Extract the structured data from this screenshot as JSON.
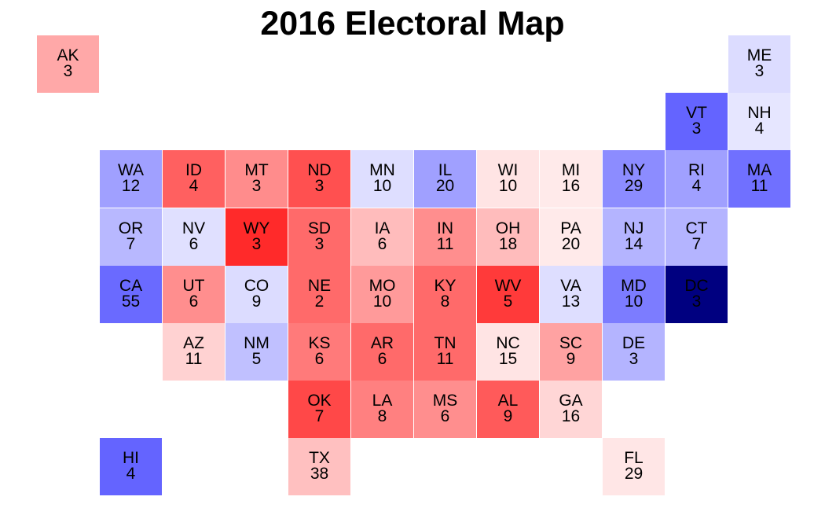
{
  "title": "2016 Electoral Map",
  "states": [
    {
      "abbr": "AK",
      "votes": "3",
      "col": 0,
      "row": 0,
      "color": "#ffa8a8"
    },
    {
      "abbr": "ME",
      "votes": "3",
      "col": 11,
      "row": 0,
      "color": "#dcdcff"
    },
    {
      "abbr": "VT",
      "votes": "3",
      "col": 10,
      "row": 1,
      "color": "#6464ff"
    },
    {
      "abbr": "NH",
      "votes": "4",
      "col": 11,
      "row": 1,
      "color": "#e6e6ff"
    },
    {
      "abbr": "WA",
      "votes": "12",
      "col": 1,
      "row": 2,
      "color": "#a0a0ff"
    },
    {
      "abbr": "ID",
      "votes": "4",
      "col": 2,
      "row": 2,
      "color": "#ff6060"
    },
    {
      "abbr": "MT",
      "votes": "3",
      "col": 3,
      "row": 2,
      "color": "#ff8c8c"
    },
    {
      "abbr": "ND",
      "votes": "3",
      "col": 4,
      "row": 2,
      "color": "#ff5050"
    },
    {
      "abbr": "MN",
      "votes": "10",
      "col": 5,
      "row": 2,
      "color": "#dedeff"
    },
    {
      "abbr": "IL",
      "votes": "20",
      "col": 6,
      "row": 2,
      "color": "#a0a0ff"
    },
    {
      "abbr": "WI",
      "votes": "10",
      "col": 7,
      "row": 2,
      "color": "#ffe4e4"
    },
    {
      "abbr": "MI",
      "votes": "16",
      "col": 8,
      "row": 2,
      "color": "#ffeaea"
    },
    {
      "abbr": "NY",
      "votes": "29",
      "col": 9,
      "row": 2,
      "color": "#8c8cff"
    },
    {
      "abbr": "RI",
      "votes": "4",
      "col": 10,
      "row": 2,
      "color": "#a0a0ff"
    },
    {
      "abbr": "MA",
      "votes": "11",
      "col": 11,
      "row": 2,
      "color": "#7070ff"
    },
    {
      "abbr": "OR",
      "votes": "7",
      "col": 1,
      "row": 3,
      "color": "#b8b8ff"
    },
    {
      "abbr": "NV",
      "votes": "6",
      "col": 2,
      "row": 3,
      "color": "#e0e0ff"
    },
    {
      "abbr": "WY",
      "votes": "3",
      "col": 3,
      "row": 3,
      "color": "#ff2a2a"
    },
    {
      "abbr": "SD",
      "votes": "3",
      "col": 4,
      "row": 3,
      "color": "#ff6a6a"
    },
    {
      "abbr": "IA",
      "votes": "6",
      "col": 5,
      "row": 3,
      "color": "#ffbcbc"
    },
    {
      "abbr": "IN",
      "votes": "11",
      "col": 6,
      "row": 3,
      "color": "#ff8e8e"
    },
    {
      "abbr": "OH",
      "votes": "18",
      "col": 7,
      "row": 3,
      "color": "#ffbcbc"
    },
    {
      "abbr": "PA",
      "votes": "20",
      "col": 8,
      "row": 3,
      "color": "#ffeaea"
    },
    {
      "abbr": "NJ",
      "votes": "14",
      "col": 9,
      "row": 3,
      "color": "#b4b4ff"
    },
    {
      "abbr": "CT",
      "votes": "7",
      "col": 10,
      "row": 3,
      "color": "#b4b4ff"
    },
    {
      "abbr": "CA",
      "votes": "55",
      "col": 1,
      "row": 4,
      "color": "#6a6aff"
    },
    {
      "abbr": "UT",
      "votes": "6",
      "col": 2,
      "row": 4,
      "color": "#ff8e8e"
    },
    {
      "abbr": "CO",
      "votes": "9",
      "col": 3,
      "row": 4,
      "color": "#dcdcff"
    },
    {
      "abbr": "NE",
      "votes": "2",
      "col": 4,
      "row": 4,
      "color": "#ff6a6a"
    },
    {
      "abbr": "MO",
      "votes": "10",
      "col": 5,
      "row": 4,
      "color": "#ff9a9a"
    },
    {
      "abbr": "KY",
      "votes": "8",
      "col": 6,
      "row": 4,
      "color": "#ff6a6a"
    },
    {
      "abbr": "WV",
      "votes": "5",
      "col": 7,
      "row": 4,
      "color": "#ff3a3a"
    },
    {
      "abbr": "VA",
      "votes": "13",
      "col": 8,
      "row": 4,
      "color": "#dedeff"
    },
    {
      "abbr": "MD",
      "votes": "10",
      "col": 9,
      "row": 4,
      "color": "#7c7cff"
    },
    {
      "abbr": "DC",
      "votes": "3",
      "col": 10,
      "row": 4,
      "color": "#000080"
    },
    {
      "abbr": "AZ",
      "votes": "11",
      "col": 2,
      "row": 5,
      "color": "#ffd2d2"
    },
    {
      "abbr": "NM",
      "votes": "5",
      "col": 3,
      "row": 5,
      "color": "#c0c0ff"
    },
    {
      "abbr": "KS",
      "votes": "6",
      "col": 4,
      "row": 5,
      "color": "#ff7a7a"
    },
    {
      "abbr": "AR",
      "votes": "6",
      "col": 5,
      "row": 5,
      "color": "#ff6a6a"
    },
    {
      "abbr": "TN",
      "votes": "11",
      "col": 6,
      "row": 5,
      "color": "#ff6a6a"
    },
    {
      "abbr": "NC",
      "votes": "15",
      "col": 7,
      "row": 5,
      "color": "#ffe4e4"
    },
    {
      "abbr": "SC",
      "votes": "9",
      "col": 8,
      "row": 5,
      "color": "#ffa2a2"
    },
    {
      "abbr": "DE",
      "votes": "3",
      "col": 9,
      "row": 5,
      "color": "#b4b4ff"
    },
    {
      "abbr": "OK",
      "votes": "7",
      "col": 4,
      "row": 6,
      "color": "#ff4848"
    },
    {
      "abbr": "LA",
      "votes": "8",
      "col": 5,
      "row": 6,
      "color": "#ff8080"
    },
    {
      "abbr": "MS",
      "votes": "6",
      "col": 6,
      "row": 6,
      "color": "#ff8e8e"
    },
    {
      "abbr": "AL",
      "votes": "9",
      "col": 7,
      "row": 6,
      "color": "#ff5a5a"
    },
    {
      "abbr": "GA",
      "votes": "16",
      "col": 8,
      "row": 6,
      "color": "#ffd6d6"
    },
    {
      "abbr": "HI",
      "votes": "4",
      "col": 1,
      "row": 7,
      "color": "#6464ff"
    },
    {
      "abbr": "TX",
      "votes": "38",
      "col": 4,
      "row": 7,
      "color": "#ffc0c0"
    },
    {
      "abbr": "FL",
      "votes": "29",
      "col": 9,
      "row": 7,
      "color": "#ffe6e6"
    }
  ]
}
